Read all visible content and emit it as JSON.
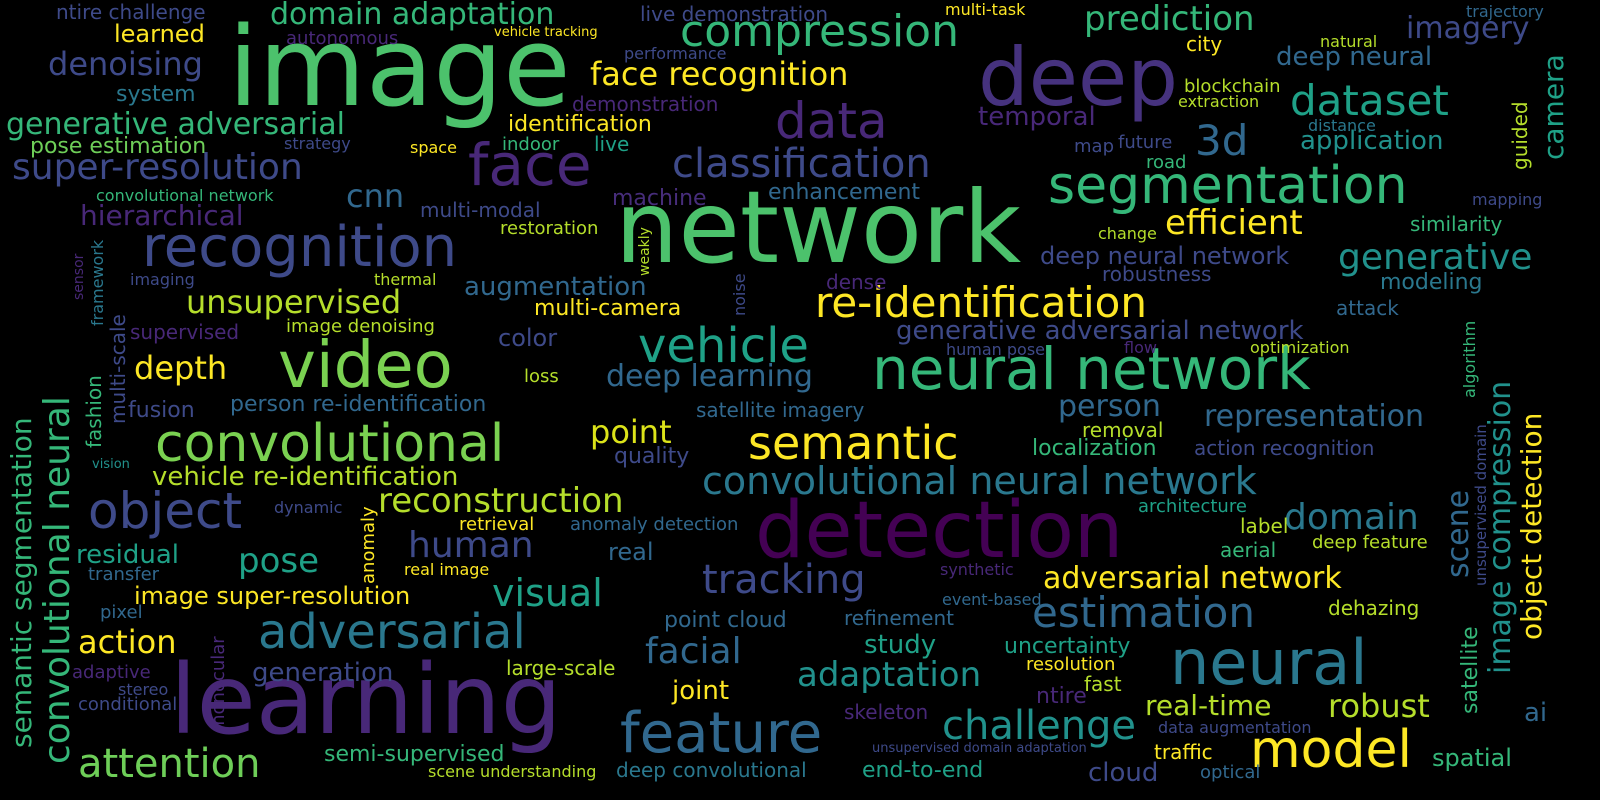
{
  "words": [
    {
      "text": "image",
      "color": "#4cc26c"
    },
    {
      "text": "deep",
      "color": "#46327e"
    },
    {
      "text": "network",
      "color": "#4cc26c"
    },
    {
      "text": "learning",
      "color": "#482878"
    },
    {
      "text": "detection",
      "color": "#440154"
    },
    {
      "text": "face",
      "color": "#482878"
    },
    {
      "text": "video",
      "color": "#7ad151"
    },
    {
      "text": "neural network",
      "color": "#35b779"
    },
    {
      "text": "recognition",
      "color": "#3e4a89"
    },
    {
      "text": "convolutional",
      "color": "#7ad151"
    },
    {
      "text": "neural",
      "color": "#2a788e"
    },
    {
      "text": "segmentation",
      "color": "#35b779"
    },
    {
      "text": "model",
      "color": "#fde725"
    },
    {
      "text": "feature",
      "color": "#31688e"
    },
    {
      "text": "data",
      "color": "#482878"
    },
    {
      "text": "compression",
      "color": "#35b779"
    },
    {
      "text": "dataset",
      "color": "#1fa187"
    },
    {
      "text": "classification",
      "color": "#3e4a89"
    },
    {
      "text": "adversarial",
      "color": "#2a788e"
    },
    {
      "text": "semantic",
      "color": "#fde725"
    },
    {
      "text": "re-identification",
      "color": "#fde725"
    },
    {
      "text": "vehicle",
      "color": "#1fa187"
    },
    {
      "text": "object",
      "color": "#3e4a89"
    },
    {
      "text": "convolutional neural network",
      "color": "#2a788e"
    },
    {
      "text": "super-resolution",
      "color": "#3e4a89"
    },
    {
      "text": "3d",
      "color": "#31688e"
    },
    {
      "text": "prediction",
      "color": "#35b779"
    },
    {
      "text": "tracking",
      "color": "#3e4a89"
    },
    {
      "text": "estimation",
      "color": "#31688e"
    },
    {
      "text": "challenge",
      "color": "#21918c"
    },
    {
      "text": "attention",
      "color": "#6ece58"
    },
    {
      "text": "efficient",
      "color": "#fde725"
    },
    {
      "text": "reconstruction",
      "color": "#b5de2b"
    },
    {
      "text": "domain adaptation",
      "color": "#35b779"
    },
    {
      "text": "face recognition",
      "color": "#fde725"
    },
    {
      "text": "generative adversarial",
      "color": "#35b779"
    },
    {
      "text": "generative",
      "color": "#21918c"
    },
    {
      "text": "unsupervised",
      "color": "#b5de2b"
    },
    {
      "text": "adversarial network",
      "color": "#fde725"
    },
    {
      "text": "adaptation",
      "color": "#21918c"
    },
    {
      "text": "real-time",
      "color": "#b5de2b"
    },
    {
      "text": "robust",
      "color": "#b5de2b"
    },
    {
      "text": "domain",
      "color": "#2a788e"
    },
    {
      "text": "denoising",
      "color": "#3e4a89"
    },
    {
      "text": "imagery",
      "color": "#3e4a89"
    },
    {
      "text": "human",
      "color": "#3e4a89"
    },
    {
      "text": "depth",
      "color": "#fde725"
    },
    {
      "text": "pose",
      "color": "#1fa187"
    },
    {
      "text": "visual",
      "color": "#1fa187"
    },
    {
      "text": "facial",
      "color": "#31688e"
    },
    {
      "text": "action",
      "color": "#fde725"
    },
    {
      "text": "person",
      "color": "#31688e"
    },
    {
      "text": "point",
      "color": "#dce319"
    },
    {
      "text": "representation",
      "color": "#31688e"
    },
    {
      "text": "cnn",
      "color": "#31688e"
    },
    {
      "text": "hierarchical",
      "color": "#482878"
    },
    {
      "text": "deep learning",
      "color": "#31688e"
    },
    {
      "text": "generative adversarial network",
      "color": "#3e4a89"
    },
    {
      "text": "vehicle re-identification",
      "color": "#b5de2b"
    },
    {
      "text": "residual",
      "color": "#1fa187"
    },
    {
      "text": "image super-resolution",
      "color": "#fde725"
    },
    {
      "text": "application",
      "color": "#21918c"
    },
    {
      "text": "deep neural",
      "color": "#31688e"
    },
    {
      "text": "deep neural network",
      "color": "#3e4a89"
    },
    {
      "text": "augmentation",
      "color": "#31688e"
    },
    {
      "text": "multi-camera",
      "color": "#fde725"
    },
    {
      "text": "pose estimation",
      "color": "#6ece58"
    },
    {
      "text": "system",
      "color": "#2a788e"
    },
    {
      "text": "learned",
      "color": "#fde725"
    },
    {
      "text": "identification",
      "color": "#fde725"
    },
    {
      "text": "temporal",
      "color": "#482878"
    },
    {
      "text": "enhancement",
      "color": "#31688e"
    },
    {
      "text": "machine",
      "color": "#472d7b"
    },
    {
      "text": "multi-modal",
      "color": "#3e4a89"
    },
    {
      "text": "restoration",
      "color": "#b5de2b"
    },
    {
      "text": "color",
      "color": "#3e4a89"
    },
    {
      "text": "modeling",
      "color": "#2a788e"
    },
    {
      "text": "attack",
      "color": "#31688e"
    },
    {
      "text": "similarity",
      "color": "#35b779"
    },
    {
      "text": "localization",
      "color": "#35b779"
    },
    {
      "text": "action recognition",
      "color": "#3e4a89"
    },
    {
      "text": "quality",
      "color": "#3e4a89"
    },
    {
      "text": "person re-identification",
      "color": "#31688e"
    },
    {
      "text": "satellite imagery",
      "color": "#31688e"
    },
    {
      "text": "fusion",
      "color": "#3e4a89"
    },
    {
      "text": "image denoising",
      "color": "#b5de2b"
    },
    {
      "text": "supervised",
      "color": "#482878"
    },
    {
      "text": "real",
      "color": "#31688e"
    },
    {
      "text": "retrieval",
      "color": "#fde725"
    },
    {
      "text": "anomaly detection",
      "color": "#31688e"
    },
    {
      "text": "label",
      "color": "#b5de2b"
    },
    {
      "text": "aerial",
      "color": "#35b779"
    },
    {
      "text": "deep feature",
      "color": "#b5de2b"
    },
    {
      "text": "dehazing",
      "color": "#b5de2b"
    },
    {
      "text": "point cloud",
      "color": "#31688e"
    },
    {
      "text": "refinement",
      "color": "#31688e"
    },
    {
      "text": "study",
      "color": "#1fa187"
    },
    {
      "text": "uncertainty",
      "color": "#1fa187"
    },
    {
      "text": "generation",
      "color": "#3e4a89"
    },
    {
      "text": "large-scale",
      "color": "#b5de2b"
    },
    {
      "text": "joint",
      "color": "#fde725"
    },
    {
      "text": "transfer",
      "color": "#31688e"
    },
    {
      "text": "pixel",
      "color": "#31688e"
    },
    {
      "text": "stereo",
      "color": "#3e4a89"
    },
    {
      "text": "conditional",
      "color": "#3e4a89"
    },
    {
      "text": "adaptive",
      "color": "#482878"
    },
    {
      "text": "semi-supervised",
      "color": "#35b779"
    },
    {
      "text": "deep convolutional",
      "color": "#2a788e"
    },
    {
      "text": "end-to-end",
      "color": "#1fa187"
    },
    {
      "text": "cloud",
      "color": "#3e4a89"
    },
    {
      "text": "optical",
      "color": "#31688e"
    },
    {
      "text": "traffic",
      "color": "#fde725"
    },
    {
      "text": "spatial",
      "color": "#35b779"
    },
    {
      "text": "ai",
      "color": "#31688e"
    },
    {
      "text": "fast",
      "color": "#b5de2b"
    },
    {
      "text": "resolution",
      "color": "#fde725"
    },
    {
      "text": "ntire",
      "color": "#482878"
    },
    {
      "text": "skeleton",
      "color": "#482878"
    },
    {
      "text": "data augmentation",
      "color": "#3e4a89"
    },
    {
      "text": "unsupervised domain adaptation",
      "color": "#3e4a89"
    },
    {
      "text": "scene understanding",
      "color": "#b5de2b"
    },
    {
      "text": "real image",
      "color": "#fde725"
    },
    {
      "text": "synthetic",
      "color": "#482878"
    },
    {
      "text": "event-based",
      "color": "#31688e"
    },
    {
      "text": "architecture",
      "color": "#1fa187"
    },
    {
      "text": "removal",
      "color": "#b5de2b"
    },
    {
      "text": "human pose",
      "color": "#3e4a89"
    },
    {
      "text": "flow",
      "color": "#482878"
    },
    {
      "text": "optimization",
      "color": "#b5de2b"
    },
    {
      "text": "robustness",
      "color": "#3e4a89"
    },
    {
      "text": "dense",
      "color": "#482878"
    },
    {
      "text": "change",
      "color": "#b5de2b"
    },
    {
      "text": "distance",
      "color": "#2a788e"
    },
    {
      "text": "map",
      "color": "#3e4a89"
    },
    {
      "text": "future",
      "color": "#3e4a89"
    },
    {
      "text": "road",
      "color": "#35b779"
    },
    {
      "text": "blockchain",
      "color": "#b5de2b"
    },
    {
      "text": "extraction",
      "color": "#b5de2b"
    },
    {
      "text": "natural",
      "color": "#b5de2b"
    },
    {
      "text": "city",
      "color": "#fde725"
    },
    {
      "text": "mapping",
      "color": "#3e4a89"
    },
    {
      "text": "trajectory",
      "color": "#31688e"
    },
    {
      "text": "ntire challenge",
      "color": "#3e4a89"
    },
    {
      "text": "live demonstration",
      "color": "#3e4a89"
    },
    {
      "text": "multi-task",
      "color": "#fde725"
    },
    {
      "text": "autonomous",
      "color": "#482878"
    },
    {
      "text": "vehicle tracking",
      "color": "#fde725"
    },
    {
      "text": "performance",
      "color": "#3e4a89"
    },
    {
      "text": "demonstration",
      "color": "#482878"
    },
    {
      "text": "indoor",
      "color": "#35b779"
    },
    {
      "text": "live",
      "color": "#1fa187"
    },
    {
      "text": "space",
      "color": "#fde725"
    },
    {
      "text": "strategy",
      "color": "#3e4a89"
    },
    {
      "text": "convolutional network",
      "color": "#35b779"
    },
    {
      "text": "imaging",
      "color": "#3e4a89"
    },
    {
      "text": "thermal",
      "color": "#b5de2b"
    },
    {
      "text": "loss",
      "color": "#b5de2b"
    },
    {
      "text": "vision",
      "color": "#21918c"
    },
    {
      "text": "dynamic",
      "color": "#3e4a89"
    },
    {
      "text": "semantic segmentation",
      "color": "#35b779"
    },
    {
      "text": "convolutional neural",
      "color": "#35b779"
    },
    {
      "text": "fashion",
      "color": "#35b779"
    },
    {
      "text": "framework",
      "color": "#2a788e"
    },
    {
      "text": "multi-scale",
      "color": "#3e4a89"
    },
    {
      "text": "sensor",
      "color": "#482878"
    },
    {
      "text": "weakly",
      "color": "#b5de2b"
    },
    {
      "text": "noise",
      "color": "#3e4a89"
    },
    {
      "text": "anomaly",
      "color": "#fde725"
    },
    {
      "text": "monocular",
      "color": "#482878"
    },
    {
      "text": "object detection",
      "color": "#fde725"
    },
    {
      "text": "image compression",
      "color": "#21918c"
    },
    {
      "text": "scene",
      "color": "#31688e"
    },
    {
      "text": "satellite",
      "color": "#35b779"
    },
    {
      "text": "unsupervised domain",
      "color": "#3e4a89"
    },
    {
      "text": "algorithm",
      "color": "#35b779"
    },
    {
      "text": "guided",
      "color": "#b5de2b"
    },
    {
      "text": "camera",
      "color": "#1fa187"
    }
  ]
}
